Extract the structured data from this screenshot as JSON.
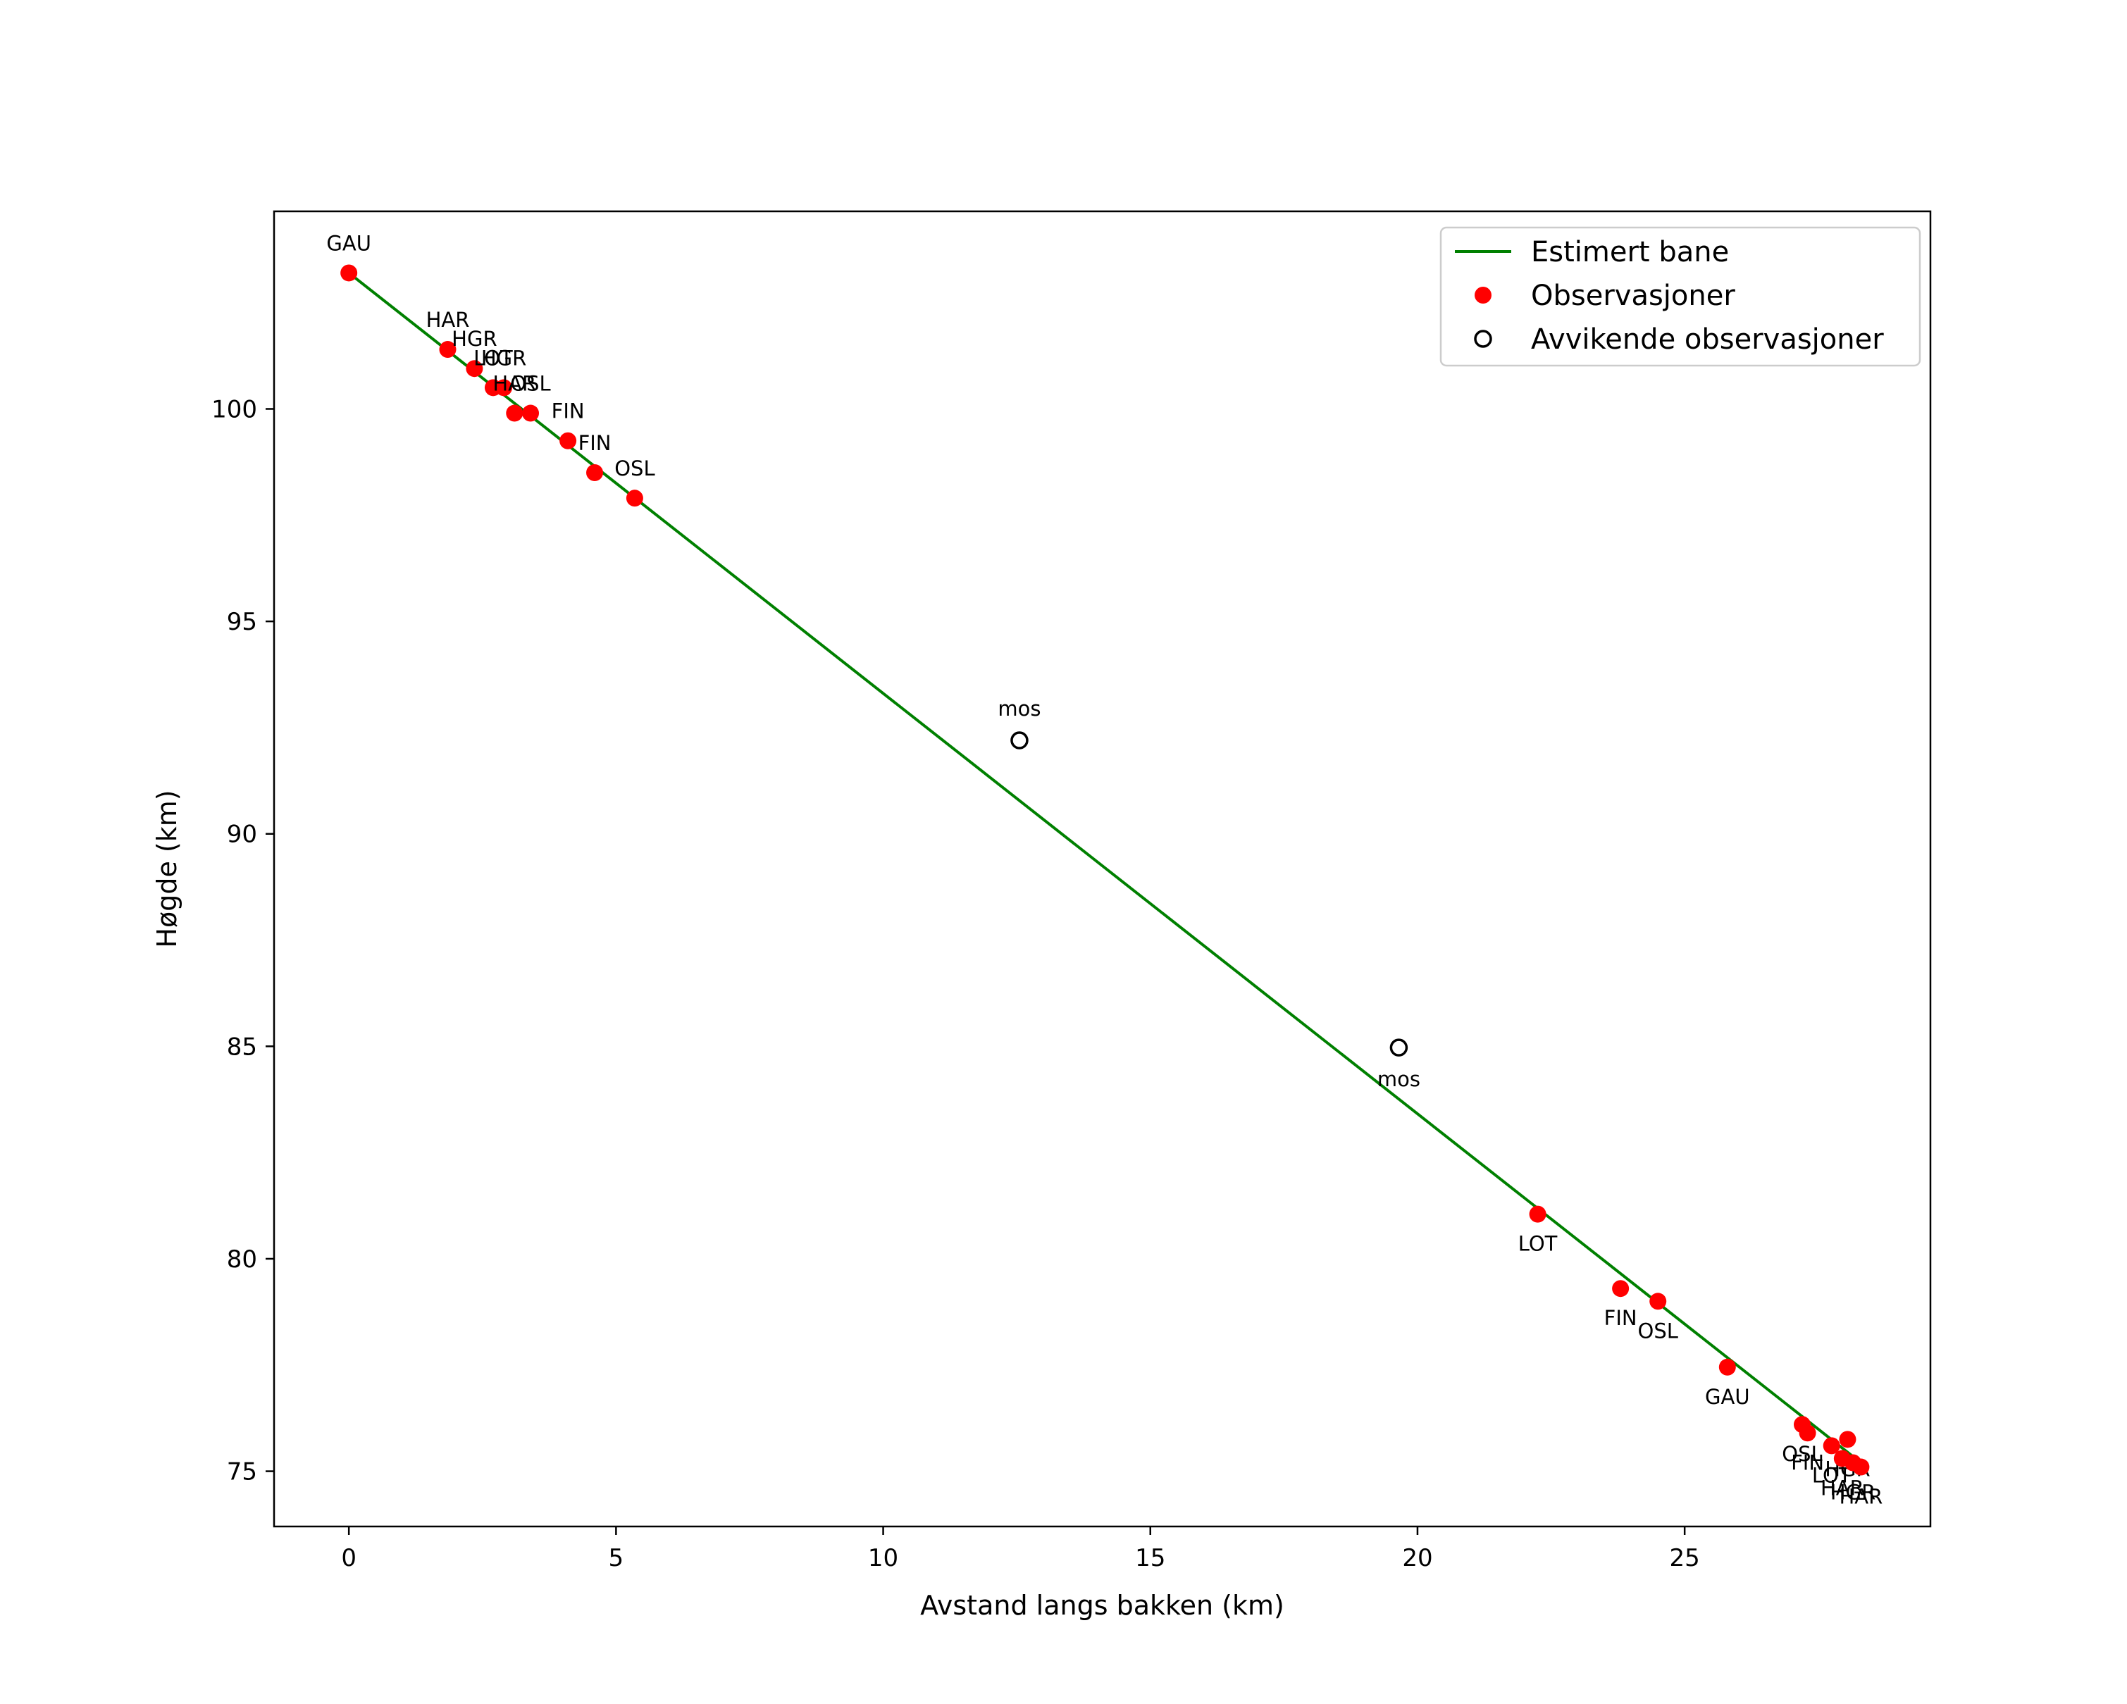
{
  "chart_data": {
    "type": "scatter",
    "title": "",
    "xlabel": "Avstand langs bakken (km)",
    "ylabel": "Høgde (km)",
    "xlim": [
      -1.4,
      29.6
    ],
    "ylim": [
      73.7,
      104.65
    ],
    "xticks": [
      0,
      5,
      10,
      15,
      20,
      25
    ],
    "yticks": [
      75,
      80,
      85,
      90,
      95,
      100
    ],
    "grid": false,
    "legend_position": "top-right",
    "colors": {
      "line": "#008000",
      "observation": "#ff0000",
      "outlier_edge": "#000000"
    },
    "legend": [
      {
        "label": "Estimert bane",
        "kind": "line"
      },
      {
        "label": "Observasjoner",
        "kind": "dot"
      },
      {
        "label": "Avvikende observasjoner",
        "kind": "ring"
      }
    ],
    "series": [
      {
        "name": "Estimert bane",
        "kind": "line",
        "x": [
          0,
          28.3
        ],
        "y": [
          103.2,
          75.2
        ]
      },
      {
        "name": "Observasjoner",
        "kind": "scatter",
        "points": [
          {
            "x": 0.0,
            "y": 103.2,
            "label": "GAU",
            "label_pos": "above"
          },
          {
            "x": 1.85,
            "y": 101.4,
            "label": "HAR",
            "label_pos": "above"
          },
          {
            "x": 2.35,
            "y": 100.95,
            "label": "HGR",
            "label_pos": "above"
          },
          {
            "x": 2.7,
            "y": 100.5,
            "label": "LOT",
            "label_pos": "above"
          },
          {
            "x": 2.9,
            "y": 100.5,
            "label": "HGR",
            "label_pos": "above"
          },
          {
            "x": 3.1,
            "y": 99.9,
            "label": "HAR",
            "label_pos": "above"
          },
          {
            "x": 3.4,
            "y": 99.9,
            "label": "OSL",
            "label_pos": "above"
          },
          {
            "x": 4.1,
            "y": 99.25,
            "label": "FIN",
            "label_pos": "above"
          },
          {
            "x": 4.6,
            "y": 98.5,
            "label": "FIN",
            "label_pos": "above"
          },
          {
            "x": 5.35,
            "y": 97.9,
            "label": "OSL",
            "label_pos": "above"
          },
          {
            "x": 22.25,
            "y": 81.05,
            "label": "LOT",
            "label_pos": "below"
          },
          {
            "x": 23.8,
            "y": 79.3,
            "label": "FIN",
            "label_pos": "below"
          },
          {
            "x": 24.5,
            "y": 79.0,
            "label": "OSL",
            "label_pos": "below"
          },
          {
            "x": 25.8,
            "y": 77.45,
            "label": "GAU",
            "label_pos": "below"
          },
          {
            "x": 27.2,
            "y": 76.1,
            "label": "OSL",
            "label_pos": "below"
          },
          {
            "x": 27.3,
            "y": 75.9,
            "label": "FIN",
            "label_pos": "below"
          },
          {
            "x": 27.75,
            "y": 75.6,
            "label": "LOT",
            "label_pos": "below"
          },
          {
            "x": 28.05,
            "y": 75.75,
            "label": "HGR",
            "label_pos": "below"
          },
          {
            "x": 27.95,
            "y": 75.3,
            "label": "HAR",
            "label_pos": "below"
          },
          {
            "x": 28.15,
            "y": 75.2,
            "label": "HGR",
            "label_pos": "below"
          },
          {
            "x": 28.3,
            "y": 75.1,
            "label": "HAR",
            "label_pos": "below"
          }
        ]
      },
      {
        "name": "Avvikende observasjoner",
        "kind": "scatter-outlier",
        "points": [
          {
            "x": 12.55,
            "y": 92.2,
            "label": "mos",
            "label_pos": "above"
          },
          {
            "x": 19.65,
            "y": 84.97,
            "label": "mos",
            "label_pos": "below"
          }
        ]
      }
    ]
  }
}
